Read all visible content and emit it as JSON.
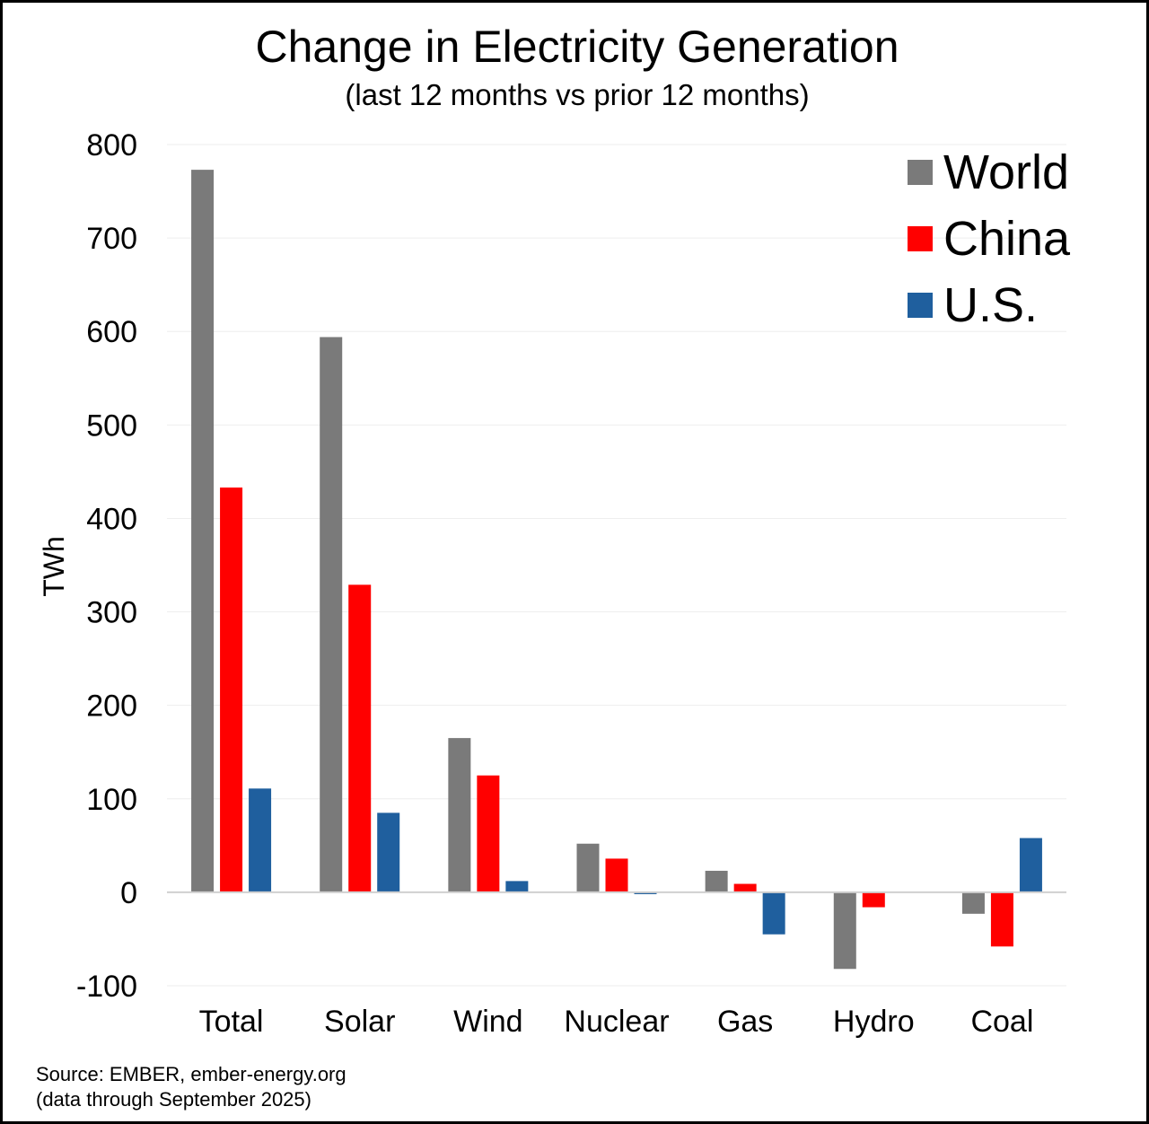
{
  "chart_data": {
    "type": "bar",
    "title": "Change in Electricity Generation",
    "subtitle": "(last 12 months vs prior 12 months)",
    "xlabel": "",
    "ylabel": "TWh",
    "ylim": [
      -100,
      800
    ],
    "yticks": [
      800,
      700,
      600,
      500,
      400,
      300,
      200,
      100,
      0,
      -100
    ],
    "grid": true,
    "legend_position": "top-right",
    "categories": [
      "Total",
      "Solar",
      "Wind",
      "Nuclear",
      "Gas",
      "Hydro",
      "Coal"
    ],
    "series": [
      {
        "name": "World",
        "color": "#7a7a7a",
        "values": [
          773,
          594,
          165,
          52,
          23,
          -82,
          -23
        ]
      },
      {
        "name": "China",
        "color": "#ff0000",
        "values": [
          433,
          329,
          125,
          36,
          9,
          -16,
          -58
        ]
      },
      {
        "name": "U.S.",
        "color": "#1f5f9e",
        "values": [
          111,
          85,
          12,
          -2,
          -45,
          0,
          58
        ]
      }
    ]
  },
  "source": {
    "line1": "Source: EMBER, ember-energy.org",
    "line2": "(data through September 2025)"
  }
}
